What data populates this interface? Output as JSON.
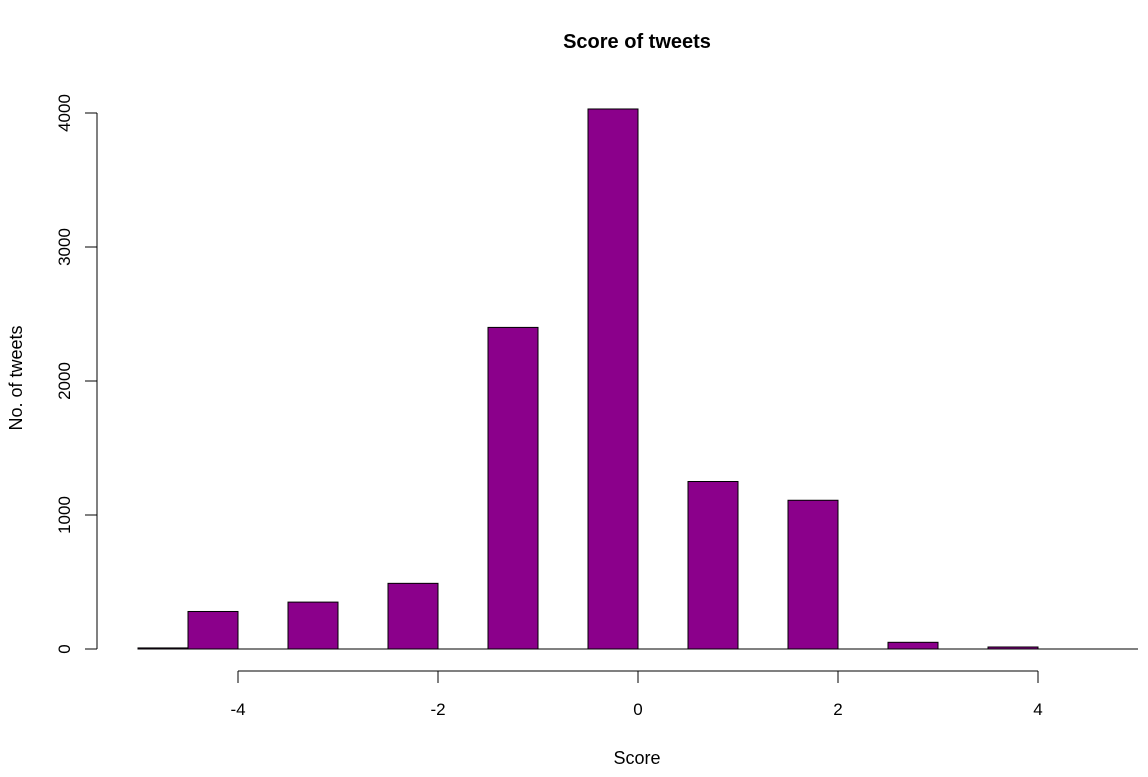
{
  "chart_data": {
    "type": "bar",
    "title": "Score of tweets",
    "xlabel": "Score",
    "ylabel": "No. of tweets",
    "xlim": [
      -5,
      5
    ],
    "ylim": [
      0,
      4000
    ],
    "x_ticks": [
      -4,
      -2,
      0,
      2,
      4
    ],
    "y_ticks": [
      0,
      1000,
      2000,
      3000,
      4000
    ],
    "bar_color": "#8B008B",
    "bar_edge_color": "#000000",
    "bars": [
      {
        "x0": -5.0,
        "x1": -4.5,
        "value": 8
      },
      {
        "x0": -4.5,
        "x1": -4.0,
        "value": 280
      },
      {
        "x0": -3.5,
        "x1": -3.0,
        "value": 350
      },
      {
        "x0": -2.5,
        "x1": -2.0,
        "value": 490
      },
      {
        "x0": -1.5,
        "x1": -1.0,
        "value": 2400
      },
      {
        "x0": -0.5,
        "x1": 0.0,
        "value": 4030
      },
      {
        "x0": 0.5,
        "x1": 1.0,
        "value": 1250
      },
      {
        "x0": 1.5,
        "x1": 2.0,
        "value": 1110
      },
      {
        "x0": 2.5,
        "x1": 3.0,
        "value": 50
      },
      {
        "x0": 3.5,
        "x1": 4.0,
        "value": 15
      }
    ]
  }
}
